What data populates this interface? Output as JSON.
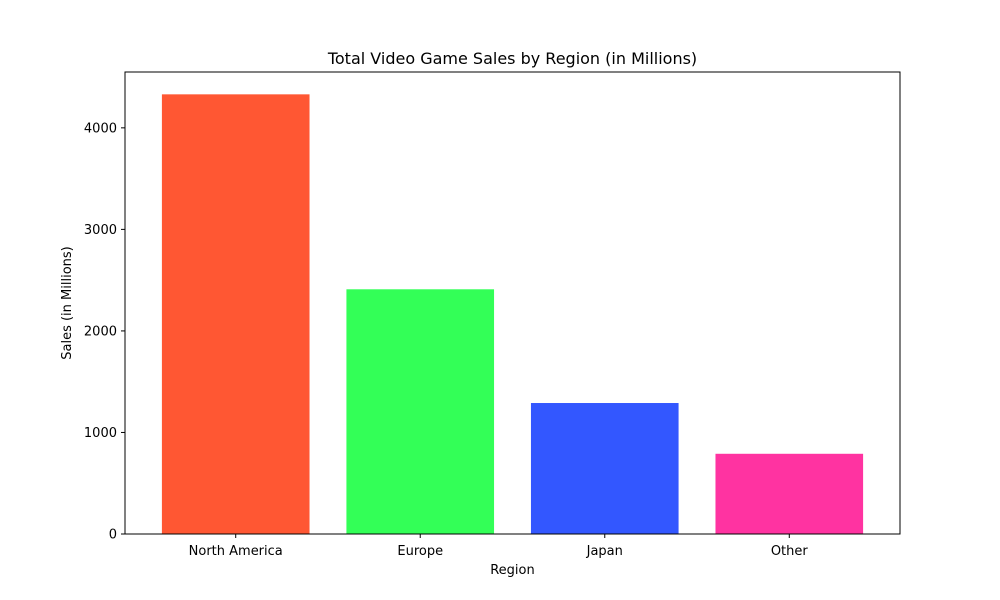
{
  "chart_data": {
    "type": "bar",
    "title": "Total Video Game Sales by Region (in Millions)",
    "xlabel": "Region",
    "ylabel": "Sales (in Millions)",
    "categories": [
      "North America",
      "Europe",
      "Japan",
      "Other"
    ],
    "values": [
      4330,
      2410,
      1290,
      790
    ],
    "colors": [
      "#ff5733",
      "#33ff57",
      "#3357ff",
      "#ff33a1"
    ],
    "ylim": [
      0,
      4550
    ],
    "yticks": [
      0,
      1000,
      2000,
      3000,
      4000
    ],
    "ytick_labels": [
      "0",
      "1000",
      "2000",
      "3000",
      "4000"
    ],
    "grid": false,
    "legend": false
  }
}
